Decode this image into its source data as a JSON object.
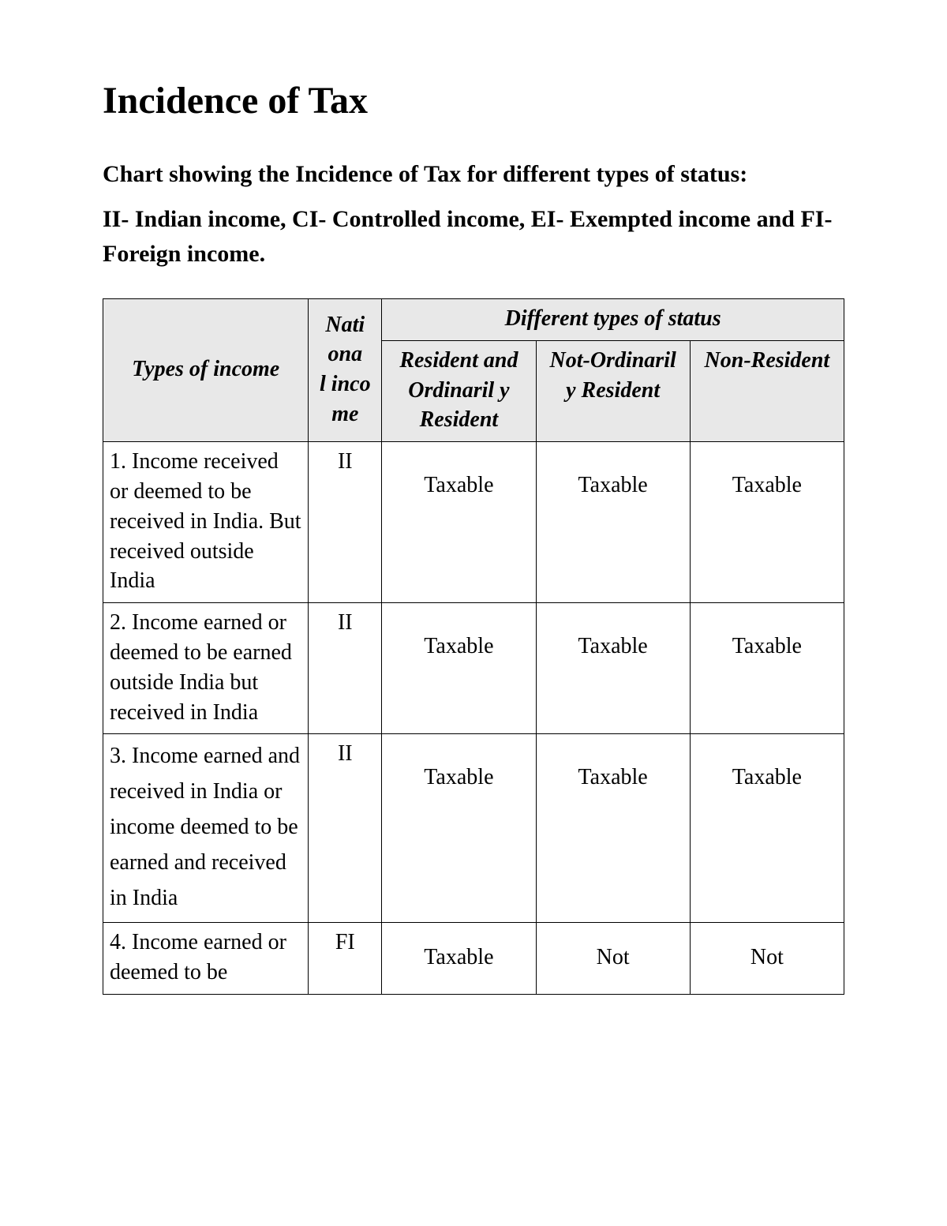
{
  "title": "Incidence of Tax",
  "subtitle": "Chart showing the Incidence of Tax for different types of status:",
  "legend": "II- Indian income, CI- Controlled income, EI- Exempted income and FI- Foreign income.",
  "table": {
    "header": {
      "types_of_income": "Types of income",
      "national_income": "Nati\nona\nl inco\nme",
      "status_group": "Different types of status",
      "resident": "Resident and Ordinaril y Resident",
      "not_ordinarily": "Not-Ordinaril y Resident",
      "non_resident": "Non-Resident"
    },
    "rows": [
      {
        "type": "1. Income received or deemed to be received in India. But received outside India",
        "national": "II",
        "resident": "Taxable",
        "not_ordinarily": "Taxable",
        "non_resident": "Taxable"
      },
      {
        "type": "2. Income earned or deemed to be earned outside India but received in India",
        "national": "II",
        "resident": "Taxable",
        "not_ordinarily": "Taxable",
        "non_resident": "Taxable"
      },
      {
        "type": "3. Income earned and received in India or income deemed to be earned and received in India",
        "national": "II",
        "resident": "Taxable",
        "not_ordinarily": "Taxable",
        "non_resident": "Taxable"
      },
      {
        "type": "4. Income earned or deemed to be",
        "national": "FI",
        "resident": "Taxable",
        "not_ordinarily": "Not",
        "non_resident": "Not"
      }
    ]
  },
  "colors": {
    "text": "#000000",
    "background": "#ffffff",
    "header_bg": "#e8e8e8",
    "border": "#000000"
  }
}
